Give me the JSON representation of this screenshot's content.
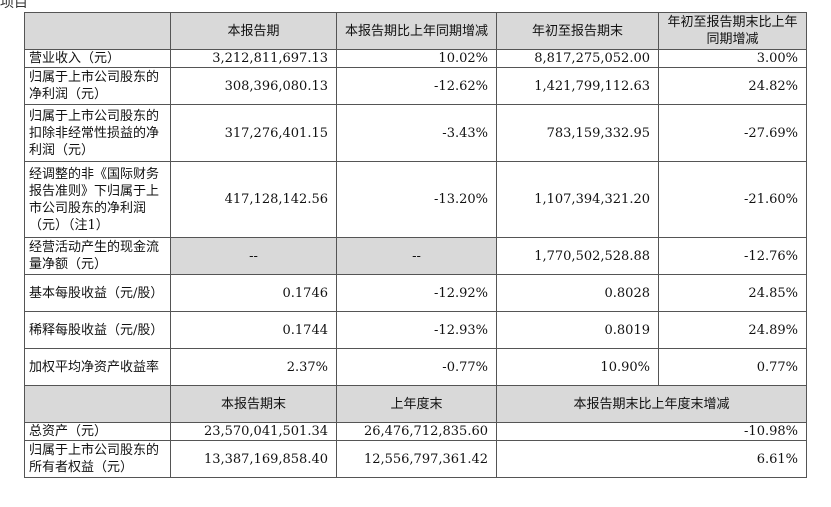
{
  "top_fragment": "项目",
  "header1": [
    "本报告期",
    "本报告期比上年同期增减",
    "年初至报告期末",
    "年初至报告期末比上年同期增减"
  ],
  "rows": [
    {
      "label": "营业收入（元）",
      "v1": "3,212,811,697.13",
      "v2": "10.02%",
      "v3": "8,817,275,052.00",
      "v4": "3.00%"
    },
    {
      "label": "归属于上市公司股东的净利润（元）",
      "v1": "308,396,080.13",
      "v2": "-12.62%",
      "v3": "1,421,799,112.63",
      "v4": "24.82%"
    },
    {
      "label": "归属于上市公司股东的扣除非经常性损益的净利润（元）",
      "v1": "317,276,401.15",
      "v2": "-3.43%",
      "v3": "783,159,332.95",
      "v4": "-27.69%"
    },
    {
      "label": "经调整的非《国际财务报告准则》下归属于上市公司股东的净利润（元）（注1）",
      "v1": "417,128,142.56",
      "v2": "-13.20%",
      "v3": "1,107,394,321.20",
      "v4": "-21.60%"
    },
    {
      "label": "经营活动产生的现金流量净额（元）",
      "v1": "--",
      "v2": "--",
      "v3": "1,770,502,528.88",
      "v4": "-12.76%"
    },
    {
      "label": "基本每股收益（元/股）",
      "v1": "0.1746",
      "v2": "-12.92%",
      "v3": "0.8028",
      "v4": "24.85%"
    },
    {
      "label": "稀释每股收益（元/股）",
      "v1": "0.1744",
      "v2": "-12.93%",
      "v3": "0.8019",
      "v4": "24.89%"
    },
    {
      "label": "加权平均净资产收益率",
      "v1": "2.37%",
      "v2": "-0.77%",
      "v3": "10.90%",
      "v4": "0.77%"
    }
  ],
  "header2": [
    "本报告期末",
    "上年度末",
    "本报告期末比上年度末增减"
  ],
  "rows2": [
    {
      "label": "总资产（元）",
      "v1": "23,570,041,501.34",
      "v2": "26,476,712,835.60",
      "v3": "-10.98%"
    },
    {
      "label": "归属于上市公司股东的所有者权益（元）",
      "v1": "13,387,169,858.40",
      "v2": "12,556,797,361.42",
      "v3": "6.61%"
    }
  ]
}
